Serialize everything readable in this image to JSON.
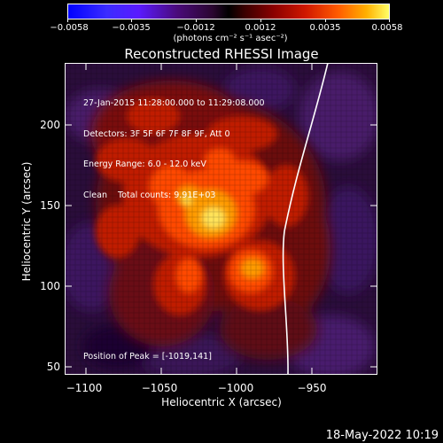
{
  "colorbar": {
    "tick_labels": [
      "−0.0058",
      "−0.0035",
      "−0.0012",
      "0.0012",
      "0.0035",
      "0.0058"
    ],
    "units": "(photons cm⁻² s⁻¹ asec⁻²)"
  },
  "title": "Reconstructed RHESSI Image",
  "info": {
    "time_range": "27-Jan-2015 11:28:00.000 to 11:29:08.000",
    "detectors": "Detectors: 3F 5F 6F 7F 8F 9F, Att 0",
    "energy_range": "Energy Range: 6.0 - 12.0 keV",
    "algorithm": "Clean    Total counts: 9.91E+03",
    "peak": "Position of Peak = [-1019,141]"
  },
  "axes": {
    "xlabel": "Heliocentric X (arcsec)",
    "ylabel": "Heliocentric Y (arcsec)",
    "x_ticks": [
      "−1100",
      "−1050",
      "−1000",
      "−950"
    ],
    "y_ticks": [
      "200",
      "150",
      "100",
      "50"
    ]
  },
  "footer": {
    "date": "18-May-2022 10:19"
  }
}
